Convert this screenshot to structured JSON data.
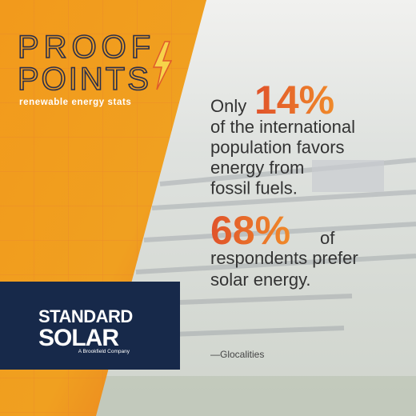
{
  "header": {
    "title_line1": "PROOF",
    "title_line2": "POINTS",
    "tagline": "renewable energy stats"
  },
  "stat1": {
    "lead": "Only",
    "figure": "14%",
    "lines": [
      "of the international",
      "population favors",
      "energy from",
      "fossil fuels."
    ]
  },
  "stat2": {
    "figure": "68%",
    "trail": "of",
    "lines": [
      "respondents prefer",
      "solar energy."
    ]
  },
  "source": "—Glocalities",
  "logo": {
    "line1": "STANDARD",
    "line2": "SOLAR",
    "sub": "A Brookfield Company"
  }
}
